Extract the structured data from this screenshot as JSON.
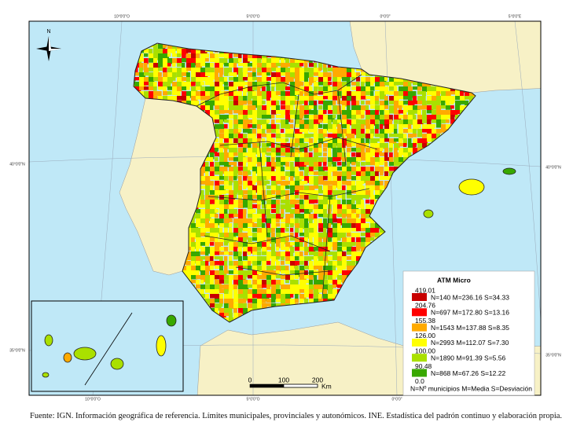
{
  "map": {
    "graticule": {
      "top": [
        "10°0'0\"O",
        "5°0'0\"O",
        "0°0'0\"",
        "5°0'0\"E"
      ],
      "bottom": [
        "10°0'0\"O",
        "5°0'0\"O",
        "0°0'0\""
      ],
      "left": [
        "40°0'0\"N",
        "35°0'0\"N"
      ],
      "right": [
        "40°0'0\"N",
        "35°0'0\"N"
      ]
    },
    "north_arrow": "N",
    "scale_bar": {
      "labels": [
        "0",
        "100",
        "200"
      ],
      "unit": "Km"
    }
  },
  "legend": {
    "title": "ATM Micro",
    "breaks": [
      "419.01",
      "204.76",
      "155.38",
      "126.00",
      "100.00",
      "90.48",
      "0.0"
    ],
    "classes": [
      {
        "label": "N=140 M=236.16 S=34.33",
        "color": "#c80000"
      },
      {
        "label": "N=697 M=172.80 S=13.16",
        "color": "#ff0000"
      },
      {
        "label": "N=1543 M=137.88 S=8.35",
        "color": "#ffaa00"
      },
      {
        "label": "N=2993 M=112.07 S=7.30",
        "color": "#ffff00"
      },
      {
        "label": "N=1890 M=91.39 S=5.56",
        "color": "#aae000"
      },
      {
        "label": "N=868 M=67.26 S=12.22",
        "color": "#38a800"
      }
    ],
    "note": "N=Nº municipios M=Media S=Desviación"
  },
  "caption": "Fuente: IGN. Información geográfica de referencia. Límites municipales, provinciales y autonómicos. INE. Estadística del padrón continuo y elaboración propia."
}
